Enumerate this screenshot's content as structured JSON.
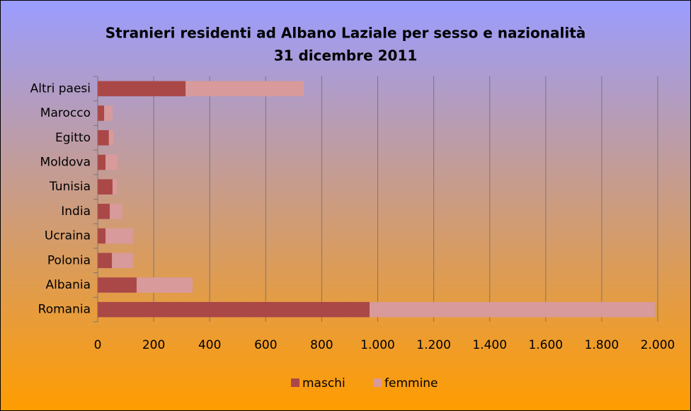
{
  "chart_data": {
    "type": "stacked_bar_horizontal",
    "title": "Stranieri residenti ad Albano Laziale per sesso e nazionalità",
    "subtitle": "31 dicembre 2011",
    "categories": [
      "Romania",
      "Albania",
      "Polonia",
      "Ucraina",
      "India",
      "Tunisia",
      "Moldova",
      "Egitto",
      "Marocco",
      "Altri paesi"
    ],
    "series": [
      {
        "name": "maschi",
        "color": "#aa4848",
        "values": [
          971,
          139,
          51,
          28,
          43,
          53,
          28,
          40,
          23,
          314
        ]
      },
      {
        "name": "femmine",
        "color": "#d89a9a",
        "values": [
          1019,
          200,
          75,
          98,
          45,
          15,
          43,
          16,
          30,
          422
        ]
      }
    ],
    "xlim": [
      0,
      2000
    ],
    "xticks": [
      0,
      200,
      400,
      600,
      800,
      {
        "value": 1000,
        "label": "1.000"
      },
      {
        "value": 1200,
        "label": "1.200"
      },
      {
        "value": 1400,
        "label": "1.400"
      },
      {
        "value": 1600,
        "label": "1.600"
      },
      {
        "value": 1800,
        "label": "1.800"
      },
      {
        "value": 2000,
        "label": "2.000"
      }
    ],
    "grid": true,
    "legend": "bottom"
  }
}
